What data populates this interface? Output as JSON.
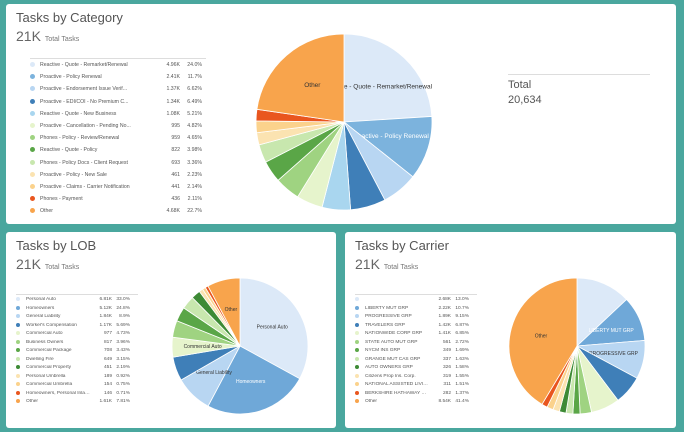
{
  "chart_data": [
    {
      "type": "pie",
      "title": "Tasks by Category",
      "subtitle_value": "21K",
      "subtitle_label": "Total Tasks",
      "total_label": "Total",
      "total_value": "20,634",
      "slices": [
        {
          "name": "Reactive - Quote - Remarket/Renewal",
          "count": "4.96K",
          "pct": 24.0,
          "color": "#dce9f8",
          "label": "Reactive - Quote - Remarket/Renewal"
        },
        {
          "name": "Proactive - Policy Renewal",
          "count": "2.41K",
          "pct": 11.7,
          "color": "#7cb3dd",
          "label": "Proactive - Policy Renewal"
        },
        {
          "name": "Proactive - Endorsement Issue Verif...",
          "count": "1.37K",
          "pct": 6.62,
          "color": "#b8d6f2",
          "label": ""
        },
        {
          "name": "Proactive - EDI/COI - No Premium C...",
          "count": "1.34K",
          "pct": 6.49,
          "color": "#3f7fb8",
          "label": ""
        },
        {
          "name": "Reactive - Quote - New Business",
          "count": "1.08K",
          "pct": 5.21,
          "color": "#a9d6ef",
          "label": ""
        },
        {
          "name": "Proactive - Cancellation - Pending No...",
          "count": "995",
          "pct": 4.82,
          "color": "#e6f4cc",
          "label": ""
        },
        {
          "name": "Phones - Policy - Review/Renewal",
          "count": "959",
          "pct": 4.65,
          "color": "#9fd381",
          "label": ""
        },
        {
          "name": "Reactive - Quote - Policy",
          "count": "822",
          "pct": 3.98,
          "color": "#5aa647",
          "label": ""
        },
        {
          "name": "Phones - Policy Docs - Client Request",
          "count": "693",
          "pct": 3.36,
          "color": "#c8e7ae",
          "label": ""
        },
        {
          "name": "Proactive - Policy - New Sale",
          "count": "461",
          "pct": 2.23,
          "color": "#fbe3b1",
          "label": ""
        },
        {
          "name": "Proactive - Claims - Carrier Notification",
          "count": "441",
          "pct": 2.14,
          "color": "#fbd28c",
          "label": ""
        },
        {
          "name": "Phones - Payment",
          "count": "436",
          "pct": 2.11,
          "color": "#e9561f",
          "label": ""
        },
        {
          "name": "Other",
          "count": "4.68K",
          "pct": 22.7,
          "color": "#f8a44c",
          "label": "Other"
        }
      ]
    },
    {
      "type": "pie",
      "title": "Tasks by LOB",
      "subtitle_value": "21K",
      "subtitle_label": "Total Tasks",
      "slices": [
        {
          "name": "Personal Auto",
          "count": "6.81K",
          "pct": 33.0,
          "color": "#dce9f8",
          "label": "Personal Auto"
        },
        {
          "name": "Homeowners",
          "count": "5.12K",
          "pct": 24.8,
          "color": "#6fa8d8",
          "label": "Homeowners"
        },
        {
          "name": "General Liability",
          "count": "1.84K",
          "pct": 8.9,
          "color": "#b8d6f2",
          "label": "General Liability"
        },
        {
          "name": "Worker's Compensation",
          "count": "1.17K",
          "pct": 5.69,
          "color": "#3f7fb8",
          "label": ""
        },
        {
          "name": "Commercial Auto",
          "count": "977",
          "pct": 4.73,
          "color": "#e6f4cc",
          "label": "Commercial Auto"
        },
        {
          "name": "Business Owners",
          "count": "817",
          "pct": 3.96,
          "color": "#9fd381",
          "label": ""
        },
        {
          "name": "Commercial Package",
          "count": "708",
          "pct": 3.43,
          "color": "#5aa647",
          "label": ""
        },
        {
          "name": "Dwelling Fire",
          "count": "649",
          "pct": 3.15,
          "color": "#c8e7ae",
          "label": ""
        },
        {
          "name": "Commercial Property",
          "count": "451",
          "pct": 2.19,
          "color": "#3d8a35",
          "label": ""
        },
        {
          "name": "Personal Umbrella",
          "count": "189",
          "pct": 0.92,
          "color": "#fbe3b1",
          "label": ""
        },
        {
          "name": "Commercial Umbrella",
          "count": "154",
          "pct": 0.75,
          "color": "#fbd28c",
          "label": ""
        },
        {
          "name": "Homeowners, Personal Inland M...",
          "count": "146",
          "pct": 0.71,
          "color": "#e9561f",
          "label": ""
        },
        {
          "name": "Other",
          "count": "1.61K",
          "pct": 7.81,
          "color": "#f8a44c",
          "label": "Other"
        }
      ]
    },
    {
      "type": "pie",
      "title": "Tasks by Carrier",
      "subtitle_value": "21K",
      "subtitle_label": "Total Tasks",
      "slices": [
        {
          "name": "",
          "count": "2.68K",
          "pct": 13.0,
          "color": "#dce9f8",
          "label": ""
        },
        {
          "name": "LIBERTY MUT GRP",
          "count": "2.22K",
          "pct": 10.7,
          "color": "#6fa8d8",
          "label": "LIBERTY MUT GRP"
        },
        {
          "name": "PROGRESSIVE GRP",
          "count": "1.89K",
          "pct": 9.15,
          "color": "#b8d6f2",
          "label": "PROGRESSIVE GRP"
        },
        {
          "name": "TRAVELERS GRP",
          "count": "1.42K",
          "pct": 6.87,
          "color": "#3f7fb8",
          "label": ""
        },
        {
          "name": "NATIONWIDE CORP GRP",
          "count": "1.41K",
          "pct": 6.85,
          "color": "#e6f4cc",
          "label": ""
        },
        {
          "name": "STATE AUTO MUT GRP",
          "count": "561",
          "pct": 2.72,
          "color": "#9fd381",
          "label": ""
        },
        {
          "name": "NYCM INS GRP",
          "count": "349",
          "pct": 1.69,
          "color": "#5aa647",
          "label": ""
        },
        {
          "name": "GRANGE MUT CAS GRP",
          "count": "337",
          "pct": 1.63,
          "color": "#c8e7ae",
          "label": ""
        },
        {
          "name": "AUTO OWNERS GRP",
          "count": "326",
          "pct": 1.58,
          "color": "#3d8a35",
          "label": ""
        },
        {
          "name": "Citizens Prop Ins. Corp.",
          "count": "319",
          "pct": 1.55,
          "color": "#fbe3b1",
          "label": ""
        },
        {
          "name": "NATIONAL ASSISTED LIVING RRG...",
          "count": "311",
          "pct": 1.51,
          "color": "#fbd28c",
          "label": ""
        },
        {
          "name": "BERKSHIRE HATHAWAY GRP",
          "count": "282",
          "pct": 1.37,
          "color": "#e9561f",
          "label": ""
        },
        {
          "name": "Other",
          "count": "8.54K",
          "pct": 41.4,
          "color": "#f8a44c",
          "label": "Other"
        }
      ]
    }
  ]
}
